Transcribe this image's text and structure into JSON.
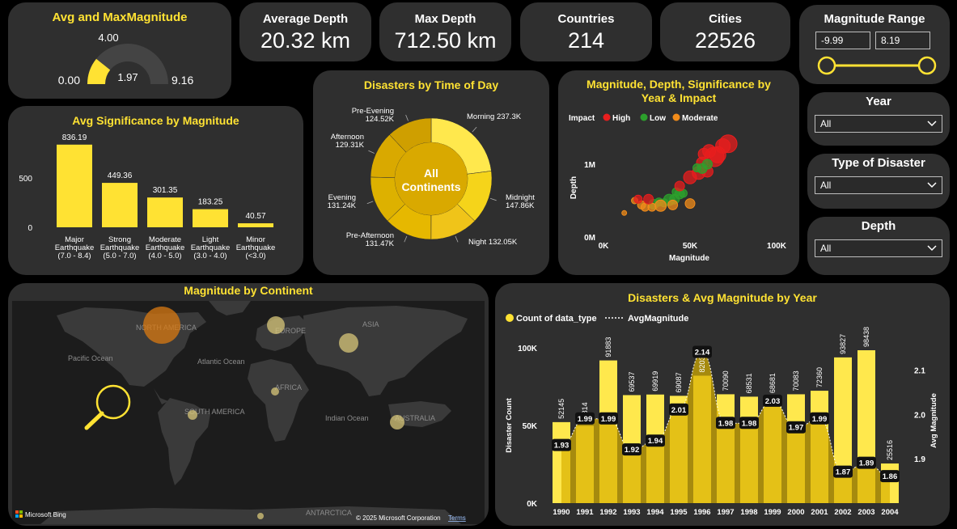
{
  "gauge": {
    "title": "Avg and MaxMagnitude",
    "min_label": "0.00",
    "max_label": "9.16",
    "target_label": "4.00",
    "value_label": "1.97",
    "value": 1.97,
    "max": 9.16
  },
  "kpis": [
    {
      "title": "Average Depth",
      "value": "20.32 km"
    },
    {
      "title": "Max Depth",
      "value": "712.50 km"
    },
    {
      "title": "Countries",
      "value": "214"
    },
    {
      "title": "Cities",
      "value": "22526"
    }
  ],
  "range": {
    "title": "Magnitude Range",
    "min_value": "-9.99",
    "max_value": "8.19"
  },
  "filters": [
    {
      "title": "Year",
      "value": "All"
    },
    {
      "title": "Type of Disaster",
      "value": "All"
    },
    {
      "title": "Depth",
      "value": "All"
    }
  ],
  "chart_data": [
    {
      "type": "bar",
      "title": "Avg Significance by Magnitude",
      "categories": [
        [
          "Major",
          "Earthquake",
          "(7.0 - 8.4)"
        ],
        [
          "Strong",
          "Earthquake",
          "(5.0 - 7.0)"
        ],
        [
          "Moderate",
          "Earthquake",
          "(4.0 - 5.0)"
        ],
        [
          "Light",
          "Earthquake",
          "(3.0 - 4.0)"
        ],
        [
          "Minor",
          "Earthquake",
          "(<3.0)"
        ]
      ],
      "values": [
        836.19,
        449.36,
        301.35,
        183.25,
        40.57
      ],
      "value_labels": [
        "836.19",
        "449.36",
        "301.35",
        "183.25",
        "40.57"
      ],
      "yticks": [
        "0",
        "500"
      ],
      "ylim": [
        0,
        900
      ]
    },
    {
      "type": "pie",
      "title": "Disasters by Time of Day",
      "center_label": [
        "All",
        "Continents"
      ],
      "slices": [
        {
          "name": "Morning",
          "value": 237.3,
          "label": "237.3K",
          "color": "#ffe84d"
        },
        {
          "name": "Midnight",
          "value": 147.86,
          "label": "147.86K",
          "color": "#f5d41a"
        },
        {
          "name": "Night",
          "value": 132.05,
          "label": "132.05K",
          "color": "#f0c419"
        },
        {
          "name": "Pre-Afternoon",
          "value": 131.47,
          "label": "131.47K",
          "color": "#e6b800"
        },
        {
          "name": "Evening",
          "value": 131.24,
          "label": "131.24K",
          "color": "#ddb100"
        },
        {
          "name": "Afternoon",
          "value": 129.31,
          "label": "129.31K",
          "color": "#d9a900"
        },
        {
          "name": "Pre-Evening",
          "value": 124.52,
          "label": "124.52K",
          "color": "#cf9f00"
        }
      ]
    },
    {
      "type": "scatter",
      "title": [
        "Magnitude, Depth, Significance by",
        "Year & Impact"
      ],
      "legend_title": "Impact",
      "legend": [
        {
          "name": "High",
          "color": "#e81e1e"
        },
        {
          "name": "Low",
          "color": "#2ca02c"
        },
        {
          "name": "Moderate",
          "color": "#f28c1a"
        }
      ],
      "xlabel": "Magnitude",
      "ylabel": "Depth",
      "xticks": [
        {
          "v": 0,
          "label": "0K"
        },
        {
          "v": 50000,
          "label": "50K"
        },
        {
          "v": 100000,
          "label": "100K"
        }
      ],
      "yticks": [
        {
          "v": 0,
          "label": "0M"
        },
        {
          "v": 1000000,
          "label": "1M"
        }
      ],
      "xlim": [
        0,
        100000
      ],
      "ylim": [
        0,
        1400000
      ],
      "points": [
        {
          "x": 72000,
          "y": 1280000,
          "s": 11,
          "c": "High"
        },
        {
          "x": 69000,
          "y": 1250000,
          "s": 9,
          "c": "High"
        },
        {
          "x": 66000,
          "y": 1130000,
          "s": 10,
          "c": "High"
        },
        {
          "x": 64000,
          "y": 1100000,
          "s": 12,
          "c": "High"
        },
        {
          "x": 61000,
          "y": 1180000,
          "s": 8,
          "c": "High"
        },
        {
          "x": 57000,
          "y": 1020000,
          "s": 7,
          "c": "High"
        },
        {
          "x": 58000,
          "y": 1140000,
          "s": 7,
          "c": "High"
        },
        {
          "x": 55000,
          "y": 880000,
          "s": 8,
          "c": "High"
        },
        {
          "x": 60000,
          "y": 900000,
          "s": 7,
          "c": "High"
        },
        {
          "x": 50000,
          "y": 820000,
          "s": 8,
          "c": "High"
        },
        {
          "x": 60000,
          "y": 1000000,
          "s": 6,
          "c": "Low"
        },
        {
          "x": 57000,
          "y": 940000,
          "s": 6,
          "c": "Low"
        },
        {
          "x": 54000,
          "y": 950000,
          "s": 5,
          "c": "Low"
        },
        {
          "x": 46000,
          "y": 600000,
          "s": 5,
          "c": "Low"
        },
        {
          "x": 44000,
          "y": 590000,
          "s": 6,
          "c": "Low"
        },
        {
          "x": 42000,
          "y": 620000,
          "s": 5,
          "c": "Low"
        },
        {
          "x": 41000,
          "y": 520000,
          "s": 6,
          "c": "Low"
        },
        {
          "x": 38000,
          "y": 510000,
          "s": 7,
          "c": "Low"
        },
        {
          "x": 35000,
          "y": 470000,
          "s": 5,
          "c": "Low"
        },
        {
          "x": 32000,
          "y": 480000,
          "s": 5,
          "c": "Low"
        },
        {
          "x": 29000,
          "y": 450000,
          "s": 6,
          "c": "Low"
        },
        {
          "x": 50000,
          "y": 460000,
          "s": 6,
          "c": "Moderate"
        },
        {
          "x": 40000,
          "y": 440000,
          "s": 6,
          "c": "Moderate"
        },
        {
          "x": 33000,
          "y": 430000,
          "s": 7,
          "c": "Moderate"
        },
        {
          "x": 28000,
          "y": 410000,
          "s": 5,
          "c": "Moderate"
        },
        {
          "x": 24000,
          "y": 410000,
          "s": 5,
          "c": "Moderate"
        },
        {
          "x": 22000,
          "y": 440000,
          "s": 5,
          "c": "Moderate"
        },
        {
          "x": 18000,
          "y": 500000,
          "s": 4,
          "c": "Moderate"
        },
        {
          "x": 12000,
          "y": 330000,
          "s": 3,
          "c": "Moderate"
        },
        {
          "x": 20000,
          "y": 520000,
          "s": 5,
          "c": "High"
        },
        {
          "x": 26000,
          "y": 520000,
          "s": 6,
          "c": "High"
        },
        {
          "x": 44000,
          "y": 700000,
          "s": 6,
          "c": "High"
        }
      ]
    },
    {
      "type": "bar",
      "title": "Disasters & Avg Magnitude by Year",
      "legend": [
        {
          "name": "Count of data_type",
          "style": "dot"
        },
        {
          "name": "AvgMagnitude",
          "style": "dotted-line"
        }
      ],
      "categories": [
        "1990",
        "1991",
        "1992",
        "1993",
        "1994",
        "1995",
        "1996",
        "1997",
        "1998",
        "1999",
        "2000",
        "2001",
        "2002",
        "2003",
        "2004"
      ],
      "series": [
        {
          "name": "Count of data_type",
          "values": [
            52145,
            49814,
            91883,
            69537,
            69919,
            69087,
            82037,
            70090,
            68531,
            68681,
            70083,
            72360,
            93827,
            98438,
            25516
          ],
          "labels": [
            "52145",
            "49814",
            "91883",
            "69537",
            "69919",
            "69087",
            "82037",
            "70090",
            "68531",
            "68681",
            "70083",
            "72360",
            "93827",
            "98438",
            "25516"
          ]
        },
        {
          "name": "AvgMagnitude",
          "values": [
            1.93,
            1.99,
            1.99,
            1.92,
            1.94,
            2.01,
            2.14,
            1.98,
            1.98,
            2.03,
            1.97,
            1.99,
            1.87,
            1.89,
            1.86
          ],
          "labels": [
            "1.93",
            "1.99",
            "1.99",
            "1.92",
            "1.94",
            "2.01",
            "2.14",
            "1.98",
            "1.98",
            "2.03",
            "1.97",
            "1.99",
            "1.87",
            "1.89",
            "1.86"
          ]
        }
      ],
      "ylabel": "Disaster Count",
      "y2label": "Avg Magnitude",
      "yticks": [
        {
          "v": 0,
          "label": "0K"
        },
        {
          "v": 50000,
          "label": "50K"
        },
        {
          "v": 100000,
          "label": "100K"
        }
      ],
      "y2ticks": [
        {
          "v": 1.9,
          "label": "1.9"
        },
        {
          "v": 2.0,
          "label": "2.0"
        },
        {
          "v": 2.1,
          "label": "2.1"
        }
      ],
      "ylim": [
        0,
        100000
      ],
      "y2lim": [
        1.8,
        2.15
      ]
    }
  ],
  "map": {
    "title": "Magnitude by Continent",
    "labels": [
      "NORTH AMERICA",
      "EUROPE",
      "ASIA",
      "AFRICA",
      "SOUTH AMERICA",
      "AUSTRALIA",
      "ANTARCTICA",
      "Pacific Ocean",
      "Atlantic Ocean",
      "Indian Ocean"
    ],
    "bing_label": "Microsoft Bing",
    "copyright": "© 2025 Microsoft Corporation",
    "terms": "Terms"
  }
}
